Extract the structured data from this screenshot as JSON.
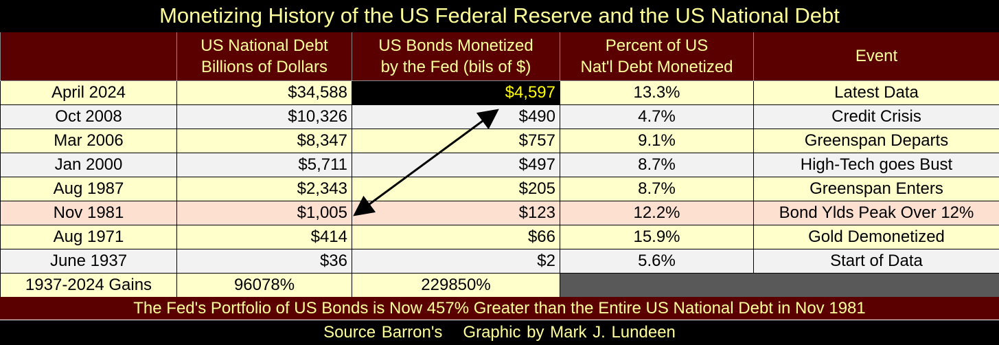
{
  "title": "Monetizing History of the US Federal Reserve and the US National Debt",
  "chart_data": {
    "type": "table",
    "columns": [
      "",
      "US National Debt Billions of Dollars",
      "US Bonds Monetized by the Fed (bils of $)",
      "Percent of US Nat'l Debt Monetized",
      "Event"
    ],
    "header_lines": [
      [
        "",
        ""
      ],
      [
        "US National Debt",
        "Billions of Dollars"
      ],
      [
        "US Bonds Monetized",
        "by the Fed (bils of $)"
      ],
      [
        "Percent of US",
        "Nat'l Debt Monetized"
      ],
      [
        "Event",
        ""
      ]
    ],
    "rows": [
      {
        "date": "April 2024",
        "debt": "$34,588",
        "monetized": "$4,597",
        "percent": "13.3%",
        "event": "Latest Data"
      },
      {
        "date": "Oct 2008",
        "debt": "$10,326",
        "monetized": "$490",
        "percent": "4.7%",
        "event": "Credit Crisis"
      },
      {
        "date": "Mar 2006",
        "debt": "$8,347",
        "monetized": "$757",
        "percent": "9.1%",
        "event": "Greenspan Departs"
      },
      {
        "date": "Jan 2000",
        "debt": "$5,711",
        "monetized": "$497",
        "percent": "8.7%",
        "event": "High-Tech goes Bust"
      },
      {
        "date": "Aug 1987",
        "debt": "$2,343",
        "monetized": "$205",
        "percent": "8.7%",
        "event": "Greenspan Enters"
      },
      {
        "date": "Nov 1981",
        "debt": "$1,005",
        "monetized": "$123",
        "percent": "12.2%",
        "event": "Bond Ylds Peak Over 12%"
      },
      {
        "date": "Aug 1971",
        "debt": "$414",
        "monetized": "$66",
        "percent": "15.9%",
        "event": "Gold Demonetized"
      },
      {
        "date": "June 1937",
        "debt": "$36",
        "monetized": "$2",
        "percent": "5.6%",
        "event": "Start of Data"
      }
    ],
    "gains": {
      "label": "1937-2024 Gains",
      "debt": "96078%",
      "monetized": "229850%"
    }
  },
  "footer": "The Fed's Portfolio of US Bonds is Now 457% Greater than the Entire US National Debt in Nov 1981",
  "source": {
    "left": "Source Barron's",
    "right": "Graphic by Mark J. Lundeen"
  },
  "colors": {
    "maroon": "#5a0000",
    "yellow_text": "#ffff99",
    "cream": "#ffffcc",
    "gray": "#f2f2f2",
    "pink": "#fde0d0",
    "dark": "#595959"
  }
}
